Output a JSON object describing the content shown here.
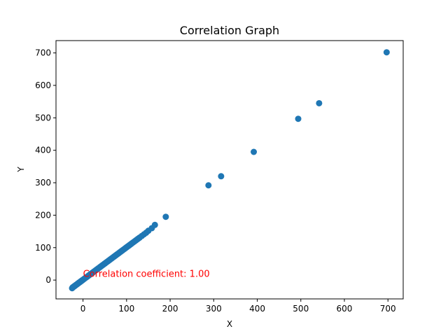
{
  "chart_data": {
    "type": "scatter",
    "title": "Correlation Graph",
    "xlabel": "X",
    "ylabel": "Y",
    "xlim": [
      -62,
      735
    ],
    "ylim": [
      -58,
      738
    ],
    "x_ticks": [
      0,
      100,
      200,
      300,
      400,
      500,
      600,
      700
    ],
    "y_ticks": [
      0,
      100,
      200,
      300,
      400,
      500,
      600,
      700
    ],
    "grid": false,
    "series": [
      {
        "color": "#1f77b4",
        "points": [
          [
            -25,
            -25
          ],
          [
            -24,
            -23
          ],
          [
            -23,
            -22
          ],
          [
            -22,
            -21
          ],
          [
            -21,
            -20
          ],
          [
            -20,
            -19
          ],
          [
            -19,
            -18
          ],
          [
            -18,
            -17
          ],
          [
            -17,
            -16
          ],
          [
            -16,
            -15
          ],
          [
            -15,
            -14
          ],
          [
            -14,
            -13
          ],
          [
            -13,
            -12
          ],
          [
            -12,
            -11
          ],
          [
            -11,
            -10
          ],
          [
            -10,
            -9
          ],
          [
            -9,
            -8
          ],
          [
            -8,
            -7
          ],
          [
            -7,
            -6
          ],
          [
            -6,
            -5
          ],
          [
            -5,
            -4
          ],
          [
            -4,
            -3
          ],
          [
            -3,
            -2
          ],
          [
            -2,
            -1
          ],
          [
            -1,
            0
          ],
          [
            0,
            1
          ],
          [
            2,
            3
          ],
          [
            4,
            5
          ],
          [
            6,
            7
          ],
          [
            8,
            9
          ],
          [
            10,
            11
          ],
          [
            12,
            13
          ],
          [
            14,
            15
          ],
          [
            16,
            17
          ],
          [
            18,
            19
          ],
          [
            20,
            21
          ],
          [
            22,
            23
          ],
          [
            24,
            25
          ],
          [
            26,
            27
          ],
          [
            28,
            29
          ],
          [
            30,
            31
          ],
          [
            32,
            33
          ],
          [
            34,
            35
          ],
          [
            36,
            37
          ],
          [
            38,
            39
          ],
          [
            40,
            41
          ],
          [
            42,
            43
          ],
          [
            44,
            45
          ],
          [
            46,
            47
          ],
          [
            48,
            49
          ],
          [
            50,
            51
          ],
          [
            52,
            53
          ],
          [
            54,
            55
          ],
          [
            56,
            57
          ],
          [
            58,
            59
          ],
          [
            60,
            61
          ],
          [
            62,
            63
          ],
          [
            64,
            65
          ],
          [
            66,
            67
          ],
          [
            68,
            69
          ],
          [
            70,
            71
          ],
          [
            72,
            73
          ],
          [
            74,
            75
          ],
          [
            76,
            77
          ],
          [
            78,
            79
          ],
          [
            80,
            81
          ],
          [
            82,
            83
          ],
          [
            84,
            85
          ],
          [
            86,
            87
          ],
          [
            88,
            89
          ],
          [
            90,
            91
          ],
          [
            92,
            93
          ],
          [
            94,
            95
          ],
          [
            96,
            97
          ],
          [
            98,
            99
          ],
          [
            100,
            101
          ],
          [
            102,
            103
          ],
          [
            104,
            105
          ],
          [
            106,
            107
          ],
          [
            108,
            109
          ],
          [
            110,
            111
          ],
          [
            112,
            113
          ],
          [
            115,
            116
          ],
          [
            118,
            119
          ],
          [
            121,
            122
          ],
          [
            124,
            125
          ],
          [
            127,
            128
          ],
          [
            130,
            131
          ],
          [
            135,
            136
          ],
          [
            140,
            141
          ],
          [
            145,
            146
          ],
          [
            150,
            152
          ],
          [
            158,
            160
          ],
          [
            165,
            170
          ],
          [
            190,
            195
          ],
          [
            288,
            292
          ],
          [
            317,
            320
          ],
          [
            392,
            395
          ],
          [
            494,
            497
          ],
          [
            542,
            545
          ],
          [
            697,
            702
          ]
        ]
      }
    ],
    "annotations": [
      {
        "text": "Correlation coefficient: 1.00",
        "x": 0,
        "y": 10,
        "color": "#ff0000"
      }
    ]
  }
}
